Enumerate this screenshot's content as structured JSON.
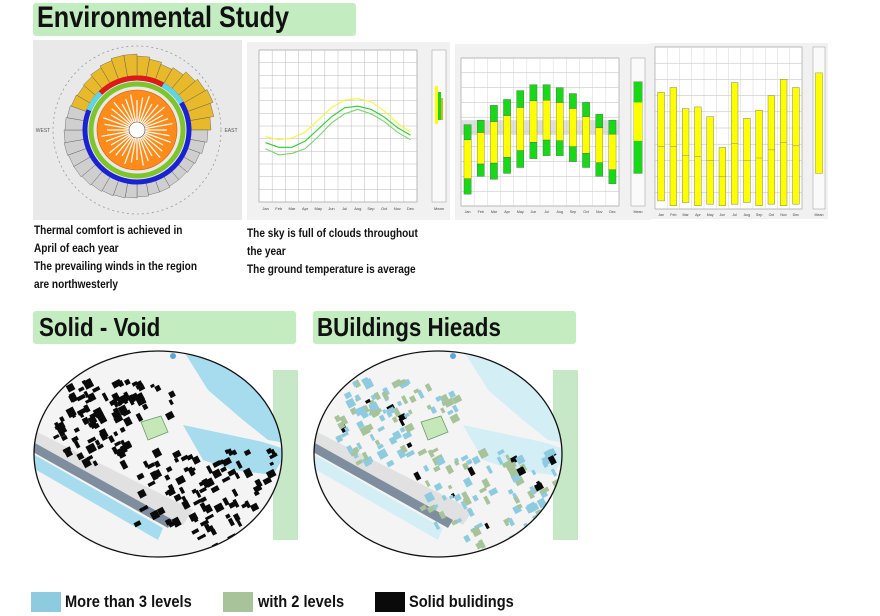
{
  "headings": {
    "environmental": "Environmental Study",
    "solid_void": "Solid - Void",
    "buildings_heights": "BUildings Hieads"
  },
  "captions": {
    "wind": [
      "Thermal comfort is achieved in",
      "April of each year",
      "The prevailing winds in the region",
      "are northwesterly"
    ],
    "sky": [
      "The sky is full of clouds throughout",
      "the year",
      "The ground temperature is average"
    ]
  },
  "legend": [
    {
      "label": "More than 3 levels",
      "color": "#8fcbe0"
    },
    {
      "label": "with 2 levels",
      "color": "#a7c39a"
    },
    {
      "label": "Solid bulidings",
      "color": "#0a0a0a"
    }
  ],
  "colors": {
    "heading_band": "#c3ecc0",
    "panel_bg": "#e9e9e9",
    "chart_yellow": "#ffff00",
    "chart_green": "#18d818",
    "water": "#a6dcee",
    "site": "#c6e8b8"
  },
  "wind_rose": {
    "labels": {
      "west": "WEST",
      "east": "EAST"
    }
  },
  "chart_data": [
    {
      "type": "line",
      "x_tick_labels": [
        "Jan",
        "Feb",
        "Mar",
        "Apr",
        "May",
        "Jun",
        "Jul",
        "Aug",
        "Sep",
        "Oct",
        "Nov",
        "Dec"
      ],
      "series": [
        {
          "values": [
            43,
            41,
            42,
            46,
            54,
            62,
            67,
            68,
            66,
            60,
            52,
            46
          ]
        },
        {
          "values": [
            39,
            36,
            36,
            40,
            48,
            56,
            62,
            63,
            61,
            56,
            49,
            44
          ]
        },
        {
          "values": [
            35,
            31,
            32,
            35,
            43,
            52,
            58,
            61,
            58,
            53,
            46,
            41
          ]
        }
      ],
      "side_label": "Mean"
    },
    {
      "type": "bar",
      "x_tick_labels": [
        "Jan",
        "Feb",
        "Mar",
        "Apr",
        "May",
        "Jun",
        "Jul",
        "Aug",
        "Sep",
        "Oct",
        "Nov",
        "Dec"
      ],
      "floating_bars": [
        [
          8,
          55
        ],
        [
          20,
          58
        ],
        [
          18,
          68
        ],
        [
          22,
          72
        ],
        [
          26,
          78
        ],
        [
          32,
          82
        ],
        [
          34,
          82
        ],
        [
          34,
          80
        ],
        [
          30,
          76
        ],
        [
          26,
          70
        ],
        [
          20,
          62
        ],
        [
          15,
          58
        ]
      ],
      "side_label": "Mean"
    },
    {
      "type": "bar",
      "x_tick_labels": [
        "Jan",
        "Feb",
        "Mar",
        "Apr",
        "May",
        "Jun",
        "Jul",
        "Aug",
        "Sep",
        "Oct",
        "Nov",
        "Dec"
      ],
      "floating_bars": [
        [
          5,
          72
        ],
        [
          2,
          75
        ],
        [
          4,
          62
        ],
        [
          2,
          63
        ],
        [
          3,
          57
        ],
        [
          2,
          38
        ],
        [
          3,
          78
        ],
        [
          4,
          56
        ],
        [
          2,
          61
        ],
        [
          3,
          70
        ],
        [
          2,
          80
        ],
        [
          3,
          75
        ]
      ],
      "side_label": "Mean"
    }
  ]
}
